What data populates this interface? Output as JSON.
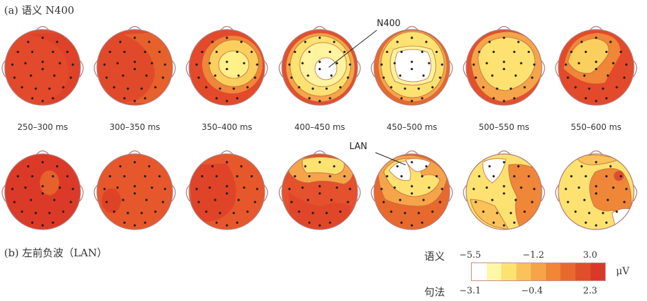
{
  "panel_a": {
    "title": "(a) 语义 N400"
  },
  "panel_b": {
    "title": "(b) 左前负波（LAN）"
  },
  "time_windows": [
    "250–300 ms",
    "300–350 ms",
    "350–400 ms",
    "400–450 ms",
    "450–500 ms",
    "500–550 ms",
    "550–600 ms"
  ],
  "callouts": {
    "n400": "N400",
    "lan": "LAN"
  },
  "colorbar": {
    "semantic": {
      "name": "语义",
      "ticks": [
        "−5.5",
        "−1.2",
        "3.0"
      ]
    },
    "syntax": {
      "name": "句法",
      "ticks": [
        "−3.1",
        "−0.4",
        "2.3"
      ]
    },
    "unit": "μV",
    "colors": [
      "#ffffff",
      "#fff7a6",
      "#fde271",
      "#f9c25a",
      "#f6a44a",
      "#ef8638",
      "#e8692d",
      "#e04f29",
      "#d93a27"
    ]
  },
  "palette": {
    "base": "#e34d2c",
    "dark": "#d9362a",
    "mid": "#ef8638",
    "light": "#fbcf5e",
    "pale": "#fff3a0",
    "white": "#ffffff"
  }
}
